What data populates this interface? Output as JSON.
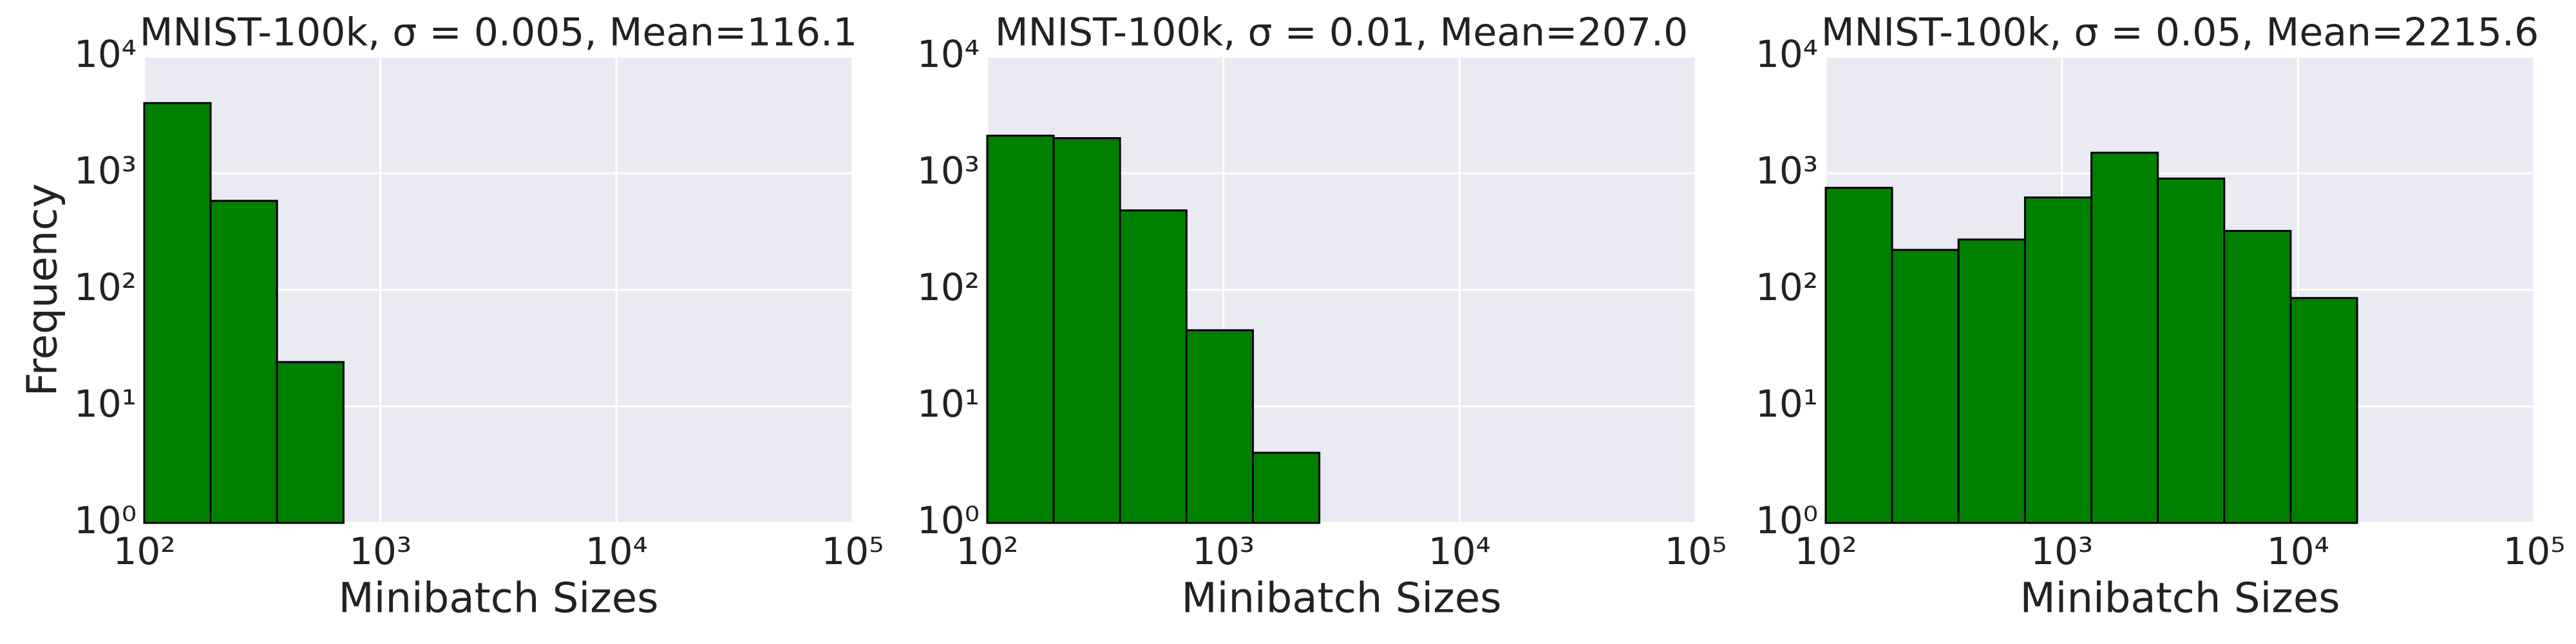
{
  "chart_data": [
    {
      "type": "histogram",
      "title": "MNIST-100k, σ = 0.005, Mean=116.1",
      "x_label": "Minibatch Sizes",
      "y_label": "Frequency",
      "bins": [
        100,
        191,
        365,
        698,
        1334
      ],
      "counts": [
        4000,
        580,
        24,
        1
      ],
      "color": "#008000",
      "xlog": true,
      "ylog": true,
      "grid": true,
      "xlim": [
        100,
        100000
      ],
      "ylim": [
        1,
        10000
      ],
      "xticks": [
        {
          "value": 100,
          "label": "10²"
        },
        {
          "value": 1000,
          "label": "10³"
        },
        {
          "value": 10000,
          "label": "10⁴"
        },
        {
          "value": 100000,
          "label": "10⁵"
        }
      ],
      "yticks": [
        {
          "value": 1,
          "label": "10⁰"
        },
        {
          "value": 10,
          "label": "10¹"
        },
        {
          "value": 100,
          "label": "10²"
        },
        {
          "value": 1000,
          "label": "10³"
        },
        {
          "value": 10000,
          "label": "10⁴"
        }
      ]
    },
    {
      "type": "histogram",
      "title": "MNIST-100k, σ = 0.01, Mean=207.0",
      "x_label": "Minibatch Sizes",
      "bins": [
        100,
        191,
        365,
        698,
        1334,
        2549,
        4871
      ],
      "counts": [
        2100,
        2000,
        480,
        45,
        4,
        1
      ],
      "color": "#008000",
      "xlog": true,
      "ylog": true,
      "grid": true,
      "xlim": [
        100,
        100000
      ],
      "ylim": [
        1,
        10000
      ],
      "xticks": [
        {
          "value": 100,
          "label": "10²"
        },
        {
          "value": 1000,
          "label": "10³"
        },
        {
          "value": 10000,
          "label": "10⁴"
        },
        {
          "value": 100000,
          "label": "10⁵"
        }
      ],
      "yticks": [
        {
          "value": 1,
          "label": "10⁰"
        },
        {
          "value": 10,
          "label": "10¹"
        },
        {
          "value": 100,
          "label": "10²"
        },
        {
          "value": 1000,
          "label": "10³"
        },
        {
          "value": 10000,
          "label": "10⁴"
        }
      ]
    },
    {
      "type": "histogram",
      "title": "MNIST-100k, σ = 0.05, Mean=2215.6",
      "x_label": "Minibatch Sizes",
      "bins": [
        100,
        191,
        365,
        698,
        1334,
        2549,
        4871,
        9310,
        17793,
        34005
      ],
      "counts": [
        750,
        220,
        270,
        620,
        1500,
        900,
        320,
        85,
        1
      ],
      "color": "#008000",
      "xlog": true,
      "ylog": true,
      "grid": true,
      "xlim": [
        100,
        100000
      ],
      "ylim": [
        1,
        10000
      ],
      "xticks": [
        {
          "value": 100,
          "label": "10²"
        },
        {
          "value": 1000,
          "label": "10³"
        },
        {
          "value": 10000,
          "label": "10⁴"
        },
        {
          "value": 100000,
          "label": "10⁵"
        }
      ],
      "yticks": [
        {
          "value": 1,
          "label": "10⁰"
        },
        {
          "value": 10,
          "label": "10¹"
        },
        {
          "value": 100,
          "label": "10²"
        },
        {
          "value": 1000,
          "label": "10³"
        },
        {
          "value": 10000,
          "label": "10⁴"
        }
      ]
    }
  ]
}
